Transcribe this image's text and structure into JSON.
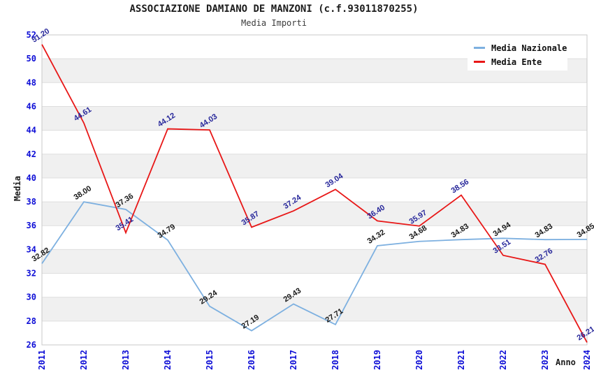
{
  "header": {
    "title": "ASSOCIAZIONE DAMIANO DE MANZONI (c.f.93011870255)",
    "subtitle": "Media Importi"
  },
  "axes": {
    "y_title": "Media",
    "x_title": "Anno",
    "y_ticks": [
      26,
      28,
      30,
      32,
      34,
      36,
      38,
      40,
      42,
      44,
      46,
      48,
      50,
      52
    ],
    "x_ticks": [
      "2011",
      "2012",
      "2013",
      "2014",
      "2015",
      "2016",
      "2017",
      "2018",
      "2019",
      "2020",
      "2021",
      "2022",
      "2023",
      "2024"
    ]
  },
  "legend": {
    "items": [
      {
        "label": "Media Nazionale",
        "color": "#7db0e0"
      },
      {
        "label": "Media Ente",
        "color": "#e81717"
      }
    ]
  },
  "colors": {
    "tick_label": "#0d0dd6",
    "band_gray": "#f0f0f0",
    "band_white": "#ffffff",
    "gridline": "#dedede",
    "frame": "#c9c9c9",
    "nazionale_point_label": "#1a1a1a",
    "ente_point_label": "#28289b"
  },
  "chart_data": {
    "type": "line",
    "title": "ASSOCIAZIONE DAMIANO DE MANZONI (c.f.93011870255)",
    "subtitle": "Media Importi",
    "xlabel": "Anno",
    "ylabel": "Media",
    "x": [
      2011,
      2012,
      2013,
      2014,
      2015,
      2016,
      2017,
      2018,
      2019,
      2020,
      2021,
      2022,
      2023,
      2024
    ],
    "series": [
      {
        "name": "Media Nazionale",
        "color": "#7db0e0",
        "label_color": "#1a1a1a",
        "values": [
          32.82,
          38.0,
          37.36,
          34.79,
          29.24,
          27.19,
          29.43,
          27.71,
          34.32,
          34.68,
          34.83,
          34.94,
          34.83,
          34.85
        ]
      },
      {
        "name": "Media Ente",
        "color": "#e81717",
        "label_color": "#28289b",
        "values": [
          51.2,
          44.61,
          35.41,
          44.12,
          44.03,
          35.87,
          37.24,
          39.04,
          36.4,
          35.97,
          38.56,
          33.51,
          32.76,
          26.21
        ]
      }
    ],
    "ylim": [
      26,
      52
    ],
    "y_tick_step": 2,
    "grid": "horizontal alternating gray/white bands every 2 units",
    "legend_position": "top-right",
    "point_labels": "values shown rotated above each point, 2 decimals"
  }
}
